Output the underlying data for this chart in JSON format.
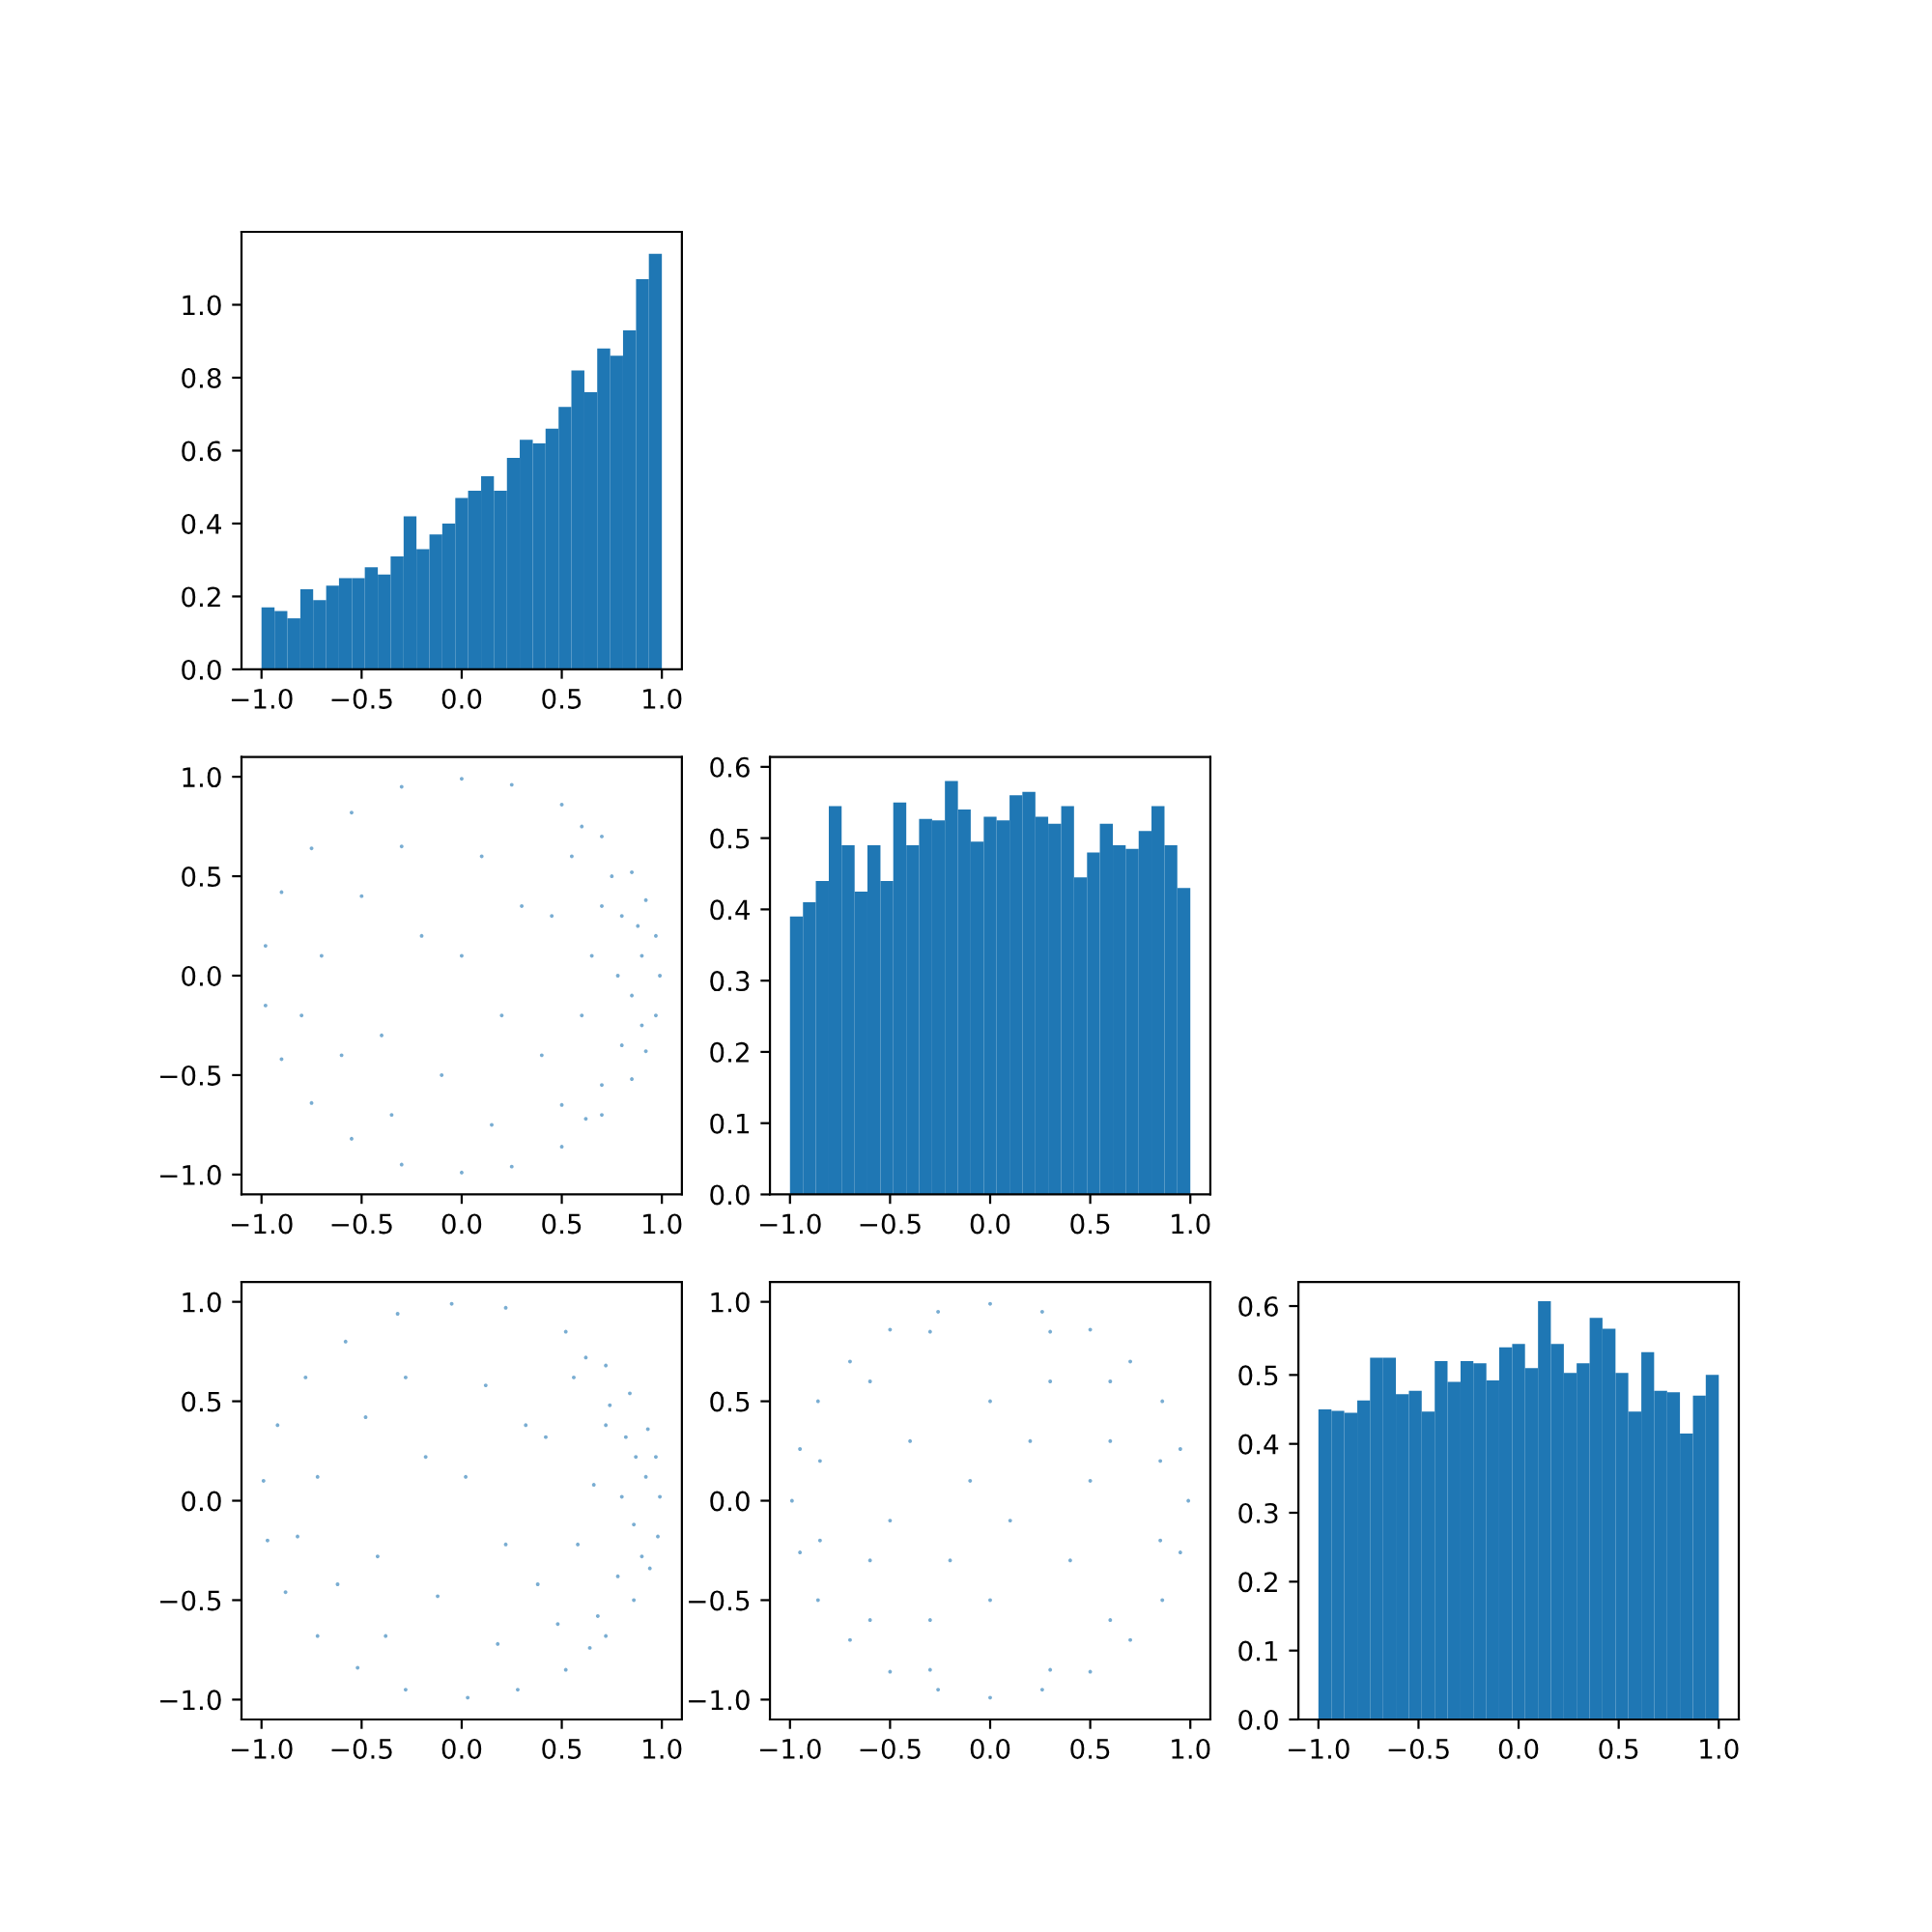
{
  "chart_data": [
    {
      "type": "histogram",
      "color": "#1f77b4",
      "bins": [
        -1,
        -0.935,
        -0.871,
        -0.806,
        -0.742,
        -0.677,
        -0.613,
        -0.548,
        -0.484,
        -0.419,
        -0.355,
        -0.29,
        -0.226,
        -0.161,
        -0.097,
        -0.032,
        0.032,
        0.097,
        0.161,
        0.226,
        0.29,
        0.355,
        0.419,
        0.484,
        0.548,
        0.613,
        0.677,
        0.742,
        0.806,
        0.871,
        0.935,
        1
      ],
      "values": [
        0.17,
        0.16,
        0.14,
        0.22,
        0.19,
        0.23,
        0.25,
        0.25,
        0.28,
        0.26,
        0.31,
        0.42,
        0.33,
        0.37,
        0.4,
        0.47,
        0.49,
        0.53,
        0.49,
        0.58,
        0.63,
        0.62,
        0.66,
        0.72,
        0.82,
        0.76,
        0.88,
        0.86,
        0.93,
        1.07,
        1.14
      ],
      "xlim": [
        -1.1,
        1.1
      ],
      "xticks": [
        {
          "value": -1,
          "label": "−1.0"
        },
        {
          "value": -0.5,
          "label": "−0.5"
        },
        {
          "value": 0,
          "label": "0.0"
        },
        {
          "value": 0.5,
          "label": "0.5"
        },
        {
          "value": 1,
          "label": "1.0"
        }
      ],
      "ylim": [
        0,
        1.2
      ],
      "yticks": [
        {
          "value": 0,
          "label": "0.0"
        },
        {
          "value": 0.2,
          "label": "0.2"
        },
        {
          "value": 0.4,
          "label": "0.4"
        },
        {
          "value": 0.6,
          "label": "0.6"
        },
        {
          "value": 0.8,
          "label": "0.8"
        },
        {
          "value": 1,
          "label": "1.0"
        }
      ]
    },
    {
      "type": "scatter",
      "color": "#1f77b4",
      "marker": "circle",
      "x": [
        0.99,
        0.97,
        0.92,
        0.85,
        0.7,
        0.5,
        0.25,
        0,
        -0.3,
        -0.55,
        -0.75,
        -0.9,
        -0.98,
        -0.98,
        -0.9,
        -0.75,
        -0.55,
        -0.3,
        0,
        0.25,
        0.5,
        0.7,
        0.85,
        0.92,
        0.97,
        0.9,
        0.85,
        0.8,
        0.8,
        0.75,
        0.7,
        0.9,
        0.88,
        0.65,
        0.6,
        0.7,
        0.55,
        0.5,
        0.45,
        0.4,
        0.78,
        0.6,
        0.62,
        -0.7,
        -0.5,
        -0.4,
        -0.6,
        -0.2,
        -0.1,
        0.1,
        0.2,
        -0.3,
        0,
        -0.8,
        0.3,
        0.15,
        -0.35
      ],
      "values": [
        0,
        0.2,
        0.38,
        0.52,
        0.7,
        0.86,
        0.96,
        0.99,
        0.95,
        0.82,
        0.64,
        0.42,
        0.15,
        -0.15,
        -0.42,
        -0.64,
        -0.82,
        -0.95,
        -0.99,
        -0.96,
        -0.86,
        -0.7,
        -0.52,
        -0.38,
        -0.2,
        0.1,
        -0.1,
        0.3,
        -0.35,
        0.5,
        -0.55,
        -0.25,
        0.25,
        0.1,
        -0.2,
        0.35,
        0.6,
        -0.65,
        0.3,
        -0.4,
        0,
        0.75,
        -0.72,
        0.1,
        0.4,
        -0.3,
        -0.4,
        0.2,
        -0.5,
        0.6,
        -0.2,
        0.65,
        0.1,
        -0.2,
        0.35,
        -0.75,
        -0.7
      ],
      "xlim": [
        -1.1,
        1.1
      ],
      "xticks": [
        {
          "value": -1,
          "label": "−1.0"
        },
        {
          "value": -0.5,
          "label": "−0.5"
        },
        {
          "value": 0,
          "label": "0.0"
        },
        {
          "value": 0.5,
          "label": "0.5"
        },
        {
          "value": 1,
          "label": "1.0"
        }
      ],
      "ylim": [
        -1.1,
        1.1
      ],
      "yticks": [
        {
          "value": -1,
          "label": "−1.0"
        },
        {
          "value": -0.5,
          "label": "−0.5"
        },
        {
          "value": 0,
          "label": "0.0"
        },
        {
          "value": 0.5,
          "label": "0.5"
        },
        {
          "value": 1,
          "label": "1.0"
        }
      ]
    },
    {
      "type": "histogram",
      "color": "#1f77b4",
      "bins": [
        -1,
        -0.935,
        -0.871,
        -0.806,
        -0.742,
        -0.677,
        -0.613,
        -0.548,
        -0.484,
        -0.419,
        -0.355,
        -0.29,
        -0.226,
        -0.161,
        -0.097,
        -0.032,
        0.032,
        0.097,
        0.161,
        0.226,
        0.29,
        0.355,
        0.419,
        0.484,
        0.548,
        0.613,
        0.677,
        0.742,
        0.806,
        0.871,
        0.935,
        1
      ],
      "values": [
        0.39,
        0.41,
        0.44,
        0.545,
        0.49,
        0.425,
        0.49,
        0.44,
        0.55,
        0.49,
        0.527,
        0.525,
        0.58,
        0.54,
        0.495,
        0.53,
        0.525,
        0.56,
        0.565,
        0.53,
        0.52,
        0.545,
        0.445,
        0.48,
        0.52,
        0.49,
        0.485,
        0.51,
        0.545,
        0.49,
        0.43
      ],
      "xlim": [
        -1.1,
        1.1
      ],
      "xticks": [
        {
          "value": -1,
          "label": "−1.0"
        },
        {
          "value": -0.5,
          "label": "−0.5"
        },
        {
          "value": 0,
          "label": "0.0"
        },
        {
          "value": 0.5,
          "label": "0.5"
        },
        {
          "value": 1,
          "label": "1.0"
        }
      ],
      "ylim": [
        0,
        0.614
      ],
      "yticks": [
        {
          "value": 0,
          "label": "0.0"
        },
        0.1,
        0.2,
        0.3,
        0.4,
        0.5,
        0.6
      ]
    },
    {
      "type": "scatter",
      "color": "#1f77b4",
      "marker": "circle",
      "x": [
        0.99,
        0.97,
        0.93,
        0.84,
        0.72,
        0.52,
        0.22,
        -0.05,
        -0.32,
        -0.58,
        -0.78,
        -0.92,
        -0.99,
        -0.97,
        -0.88,
        -0.72,
        -0.52,
        -0.28,
        0.03,
        0.28,
        0.52,
        0.72,
        0.86,
        0.94,
        0.98,
        0.92,
        0.86,
        0.82,
        0.78,
        0.74,
        0.68,
        0.9,
        0.87,
        0.66,
        0.58,
        0.72,
        0.56,
        0.48,
        0.42,
        0.38,
        0.8,
        0.62,
        0.64,
        -0.72,
        -0.48,
        -0.42,
        -0.62,
        -0.18,
        -0.12,
        0.12,
        0.22,
        -0.28,
        0.02,
        -0.82,
        0.32,
        0.18,
        -0.38
      ],
      "values": [
        0.02,
        0.22,
        0.36,
        0.54,
        0.68,
        0.85,
        0.97,
        0.99,
        0.94,
        0.8,
        0.62,
        0.38,
        0.1,
        -0.2,
        -0.46,
        -0.68,
        -0.84,
        -0.95,
        -0.99,
        -0.95,
        -0.85,
        -0.68,
        -0.5,
        -0.34,
        -0.18,
        0.12,
        -0.12,
        0.32,
        -0.38,
        0.48,
        -0.58,
        -0.28,
        0.22,
        0.08,
        -0.22,
        0.38,
        0.62,
        -0.62,
        0.32,
        -0.42,
        0.02,
        0.72,
        -0.74,
        0.12,
        0.42,
        -0.28,
        -0.42,
        0.22,
        -0.48,
        0.58,
        -0.22,
        0.62,
        0.12,
        -0.18,
        0.38,
        -0.72,
        -0.68
      ],
      "xlim": [
        -1.1,
        1.1
      ],
      "xticks": [
        {
          "value": -1,
          "label": "−1.0"
        },
        {
          "value": -0.5,
          "label": "−0.5"
        },
        {
          "value": 0,
          "label": "0.0"
        },
        {
          "value": 0.5,
          "label": "0.5"
        },
        {
          "value": 1,
          "label": "1.0"
        }
      ],
      "ylim": [
        -1.1,
        1.1
      ],
      "yticks": [
        {
          "value": -1,
          "label": "−1.0"
        },
        {
          "value": -0.5,
          "label": "−0.5"
        },
        {
          "value": 0,
          "label": "0.0"
        },
        {
          "value": 0.5,
          "label": "0.5"
        },
        {
          "value": 1,
          "label": "1.0"
        }
      ]
    },
    {
      "type": "scatter",
      "color": "#1f77b4",
      "marker": "circle",
      "x": [
        0.99,
        0.95,
        0.86,
        0.7,
        0.5,
        0.26,
        0,
        -0.26,
        -0.5,
        -0.7,
        -0.86,
        -0.95,
        -0.99,
        -0.95,
        -0.86,
        -0.7,
        -0.5,
        -0.26,
        0,
        0.26,
        0.5,
        0.7,
        0.86,
        0.95,
        0.85,
        0.6,
        0.3,
        -0.3,
        -0.6,
        -0.85,
        -0.85,
        -0.6,
        -0.3,
        0.3,
        0.6,
        0.85,
        0.5,
        -0.5,
        0.0,
        0.0,
        0.2,
        -0.2,
        0.4,
        -0.4,
        0.1,
        -0.1,
        0.6,
        -0.6,
        0.3,
        -0.3
      ],
      "values": [
        0,
        0.26,
        0.5,
        0.7,
        0.86,
        0.95,
        0.99,
        0.95,
        0.86,
        0.7,
        0.5,
        0.26,
        0,
        -0.26,
        -0.5,
        -0.7,
        -0.86,
        -0.95,
        -0.99,
        -0.95,
        -0.86,
        -0.7,
        -0.5,
        -0.26,
        0.2,
        0.6,
        0.85,
        0.85,
        0.6,
        0.2,
        -0.2,
        -0.6,
        -0.85,
        -0.85,
        -0.6,
        -0.2,
        0.1,
        -0.1,
        0.5,
        -0.5,
        0.3,
        -0.3,
        -0.3,
        0.3,
        -0.1,
        0.1,
        0.3,
        -0.3,
        0.6,
        -0.6
      ],
      "xlim": [
        -1.1,
        1.1
      ],
      "xticks": [
        {
          "value": -1,
          "label": "−1.0"
        },
        {
          "value": -0.5,
          "label": "−0.5"
        },
        {
          "value": 0,
          "label": "0.0"
        },
        {
          "value": 0.5,
          "label": "0.5"
        },
        {
          "value": 1,
          "label": "1.0"
        }
      ],
      "ylim": [
        -1.1,
        1.1
      ],
      "yticks": [
        {
          "value": -1,
          "label": "−1.0"
        },
        {
          "value": -0.5,
          "label": "−0.5"
        },
        {
          "value": 0,
          "label": "0.0"
        },
        {
          "value": 0.5,
          "label": "0.5"
        },
        {
          "value": 1,
          "label": "1.0"
        }
      ]
    },
    {
      "type": "histogram",
      "color": "#1f77b4",
      "bins": [
        -1,
        -0.935,
        -0.871,
        -0.806,
        -0.742,
        -0.677,
        -0.613,
        -0.548,
        -0.484,
        -0.419,
        -0.355,
        -0.29,
        -0.226,
        -0.161,
        -0.097,
        -0.032,
        0.032,
        0.097,
        0.161,
        0.226,
        0.29,
        0.355,
        0.419,
        0.484,
        0.548,
        0.613,
        0.677,
        0.742,
        0.806,
        0.871,
        0.935,
        1
      ],
      "values": [
        0.45,
        0.448,
        0.445,
        0.463,
        0.525,
        0.525,
        0.472,
        0.477,
        0.447,
        0.52,
        0.49,
        0.52,
        0.517,
        0.492,
        0.54,
        0.545,
        0.51,
        0.607,
        0.545,
        0.503,
        0.517,
        0.583,
        0.567,
        0.503,
        0.447,
        0.533,
        0.477,
        0.475,
        0.415,
        0.47,
        0.5
      ],
      "xlim": [
        -1.1,
        1.1
      ],
      "xticks": [
        {
          "value": -1,
          "label": "−1.0"
        },
        {
          "value": -0.5,
          "label": "−0.5"
        },
        {
          "value": 0,
          "label": "0.0"
        },
        {
          "value": 0.5,
          "label": "0.5"
        },
        {
          "value": 1,
          "label": "1.0"
        }
      ],
      "ylim": [
        0,
        0.635
      ],
      "yticks": [
        {
          "value": 0,
          "label": "0.0"
        },
        0.1,
        0.2,
        0.3,
        0.4,
        0.5,
        0.6
      ]
    }
  ]
}
